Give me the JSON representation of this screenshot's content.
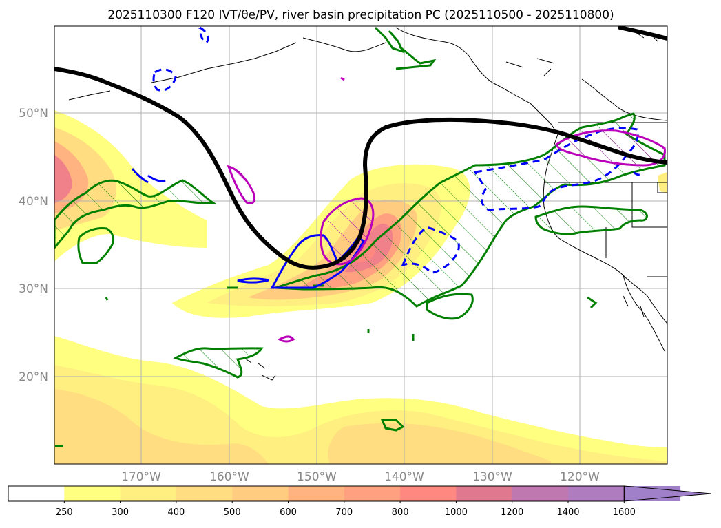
{
  "title": "2025110300 F120 IVT/θe/PV, river basin precipitation PC (2025110500 - 2025110800)",
  "map": {
    "lat_labels": [
      "50°N",
      "40°N",
      "30°N",
      "20°N"
    ],
    "lon_labels": [
      "170°W",
      "160°W",
      "150°W",
      "140°W",
      "130°W",
      "120°W"
    ]
  },
  "colorbar": {
    "levels": [
      "250",
      "300",
      "400",
      "500",
      "600",
      "700",
      "800",
      "1000",
      "1200",
      "1400",
      "1600"
    ],
    "colors": [
      "#ffffff",
      "#ffff80",
      "#ffee80",
      "#ffdd80",
      "#ffcc80",
      "#ffb380",
      "#ffa080",
      "#ff8880",
      "#e07890",
      "#c078b0",
      "#b07cc0",
      "#a080c8"
    ],
    "extend": "max"
  },
  "colors": {
    "pv_contour": "#000000",
    "green_contour": "#008000",
    "blue_contour": "#0000ff",
    "magenta_contour": "#bb00bb",
    "grid": "#b0b0b0"
  }
}
